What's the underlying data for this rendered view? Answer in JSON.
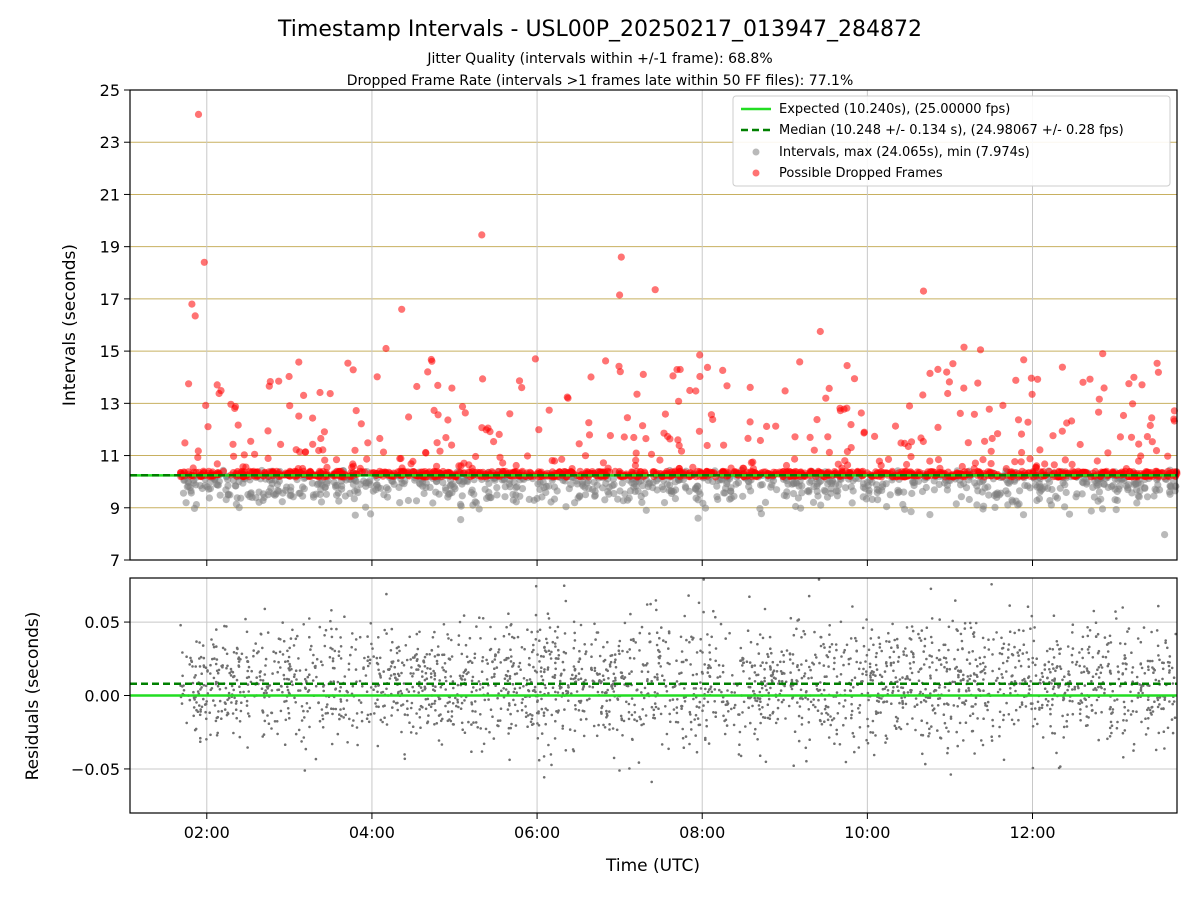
{
  "figure": {
    "title": "Timestamp Intervals - USL00P_20250217_013947_284872",
    "subtitle_1": "Jitter Quality (intervals within +/-1 frame): 68.8%",
    "subtitle_2": "Dropped Frame Rate (intervals >1 frames late within 50 FF files): 77.1%"
  },
  "colors": {
    "expected": "#22dd22",
    "median": "#008000",
    "intervals": "#808080",
    "dropped": "#ff0000",
    "hgrid_top": "#c8b060",
    "grid": "#c8c8c8",
    "residuals": "#707070"
  },
  "chart_data": [
    {
      "type": "scatter",
      "panel": "top",
      "ylabel": "Intervals (seconds)",
      "ylim": [
        7,
        25
      ],
      "xlim_hours": [
        1.07,
        13.75
      ],
      "y_ticks": [
        "7",
        "9",
        "11",
        "13",
        "15",
        "17",
        "19",
        "21",
        "23",
        "25"
      ],
      "grid": "on",
      "legend_position": "top-right",
      "legend": [
        "Expected (10.240s), (25.00000 fps)",
        "Median (10.248 +/- 0.134 s), (24.98067 +/- 0.28 fps)",
        "Intervals, max (24.065s), min (7.974s)",
        "Possible Dropped Frames"
      ],
      "expected_interval": 10.24,
      "median_interval": 10.248,
      "interval_max": 24.065,
      "interval_min": 7.974,
      "time_range_hours": [
        1.67,
        13.75
      ],
      "dropped_highlights": [
        {
          "x": 1.9,
          "y": 24.065
        },
        {
          "x": 1.97,
          "y": 18.4
        },
        {
          "x": 1.82,
          "y": 16.8
        },
        {
          "x": 1.86,
          "y": 16.35
        },
        {
          "x": 5.33,
          "y": 19.45
        },
        {
          "x": 7.02,
          "y": 18.6
        },
        {
          "x": 7.0,
          "y": 17.15
        },
        {
          "x": 7.43,
          "y": 17.35
        },
        {
          "x": 10.68,
          "y": 17.3
        },
        {
          "x": 4.36,
          "y": 16.6
        },
        {
          "x": 9.43,
          "y": 15.75
        },
        {
          "x": 4.17,
          "y": 15.1
        },
        {
          "x": 11.17,
          "y": 15.15
        },
        {
          "x": 11.37,
          "y": 15.05
        },
        {
          "x": 12.85,
          "y": 14.9
        },
        {
          "x": 7.97,
          "y": 14.85
        },
        {
          "x": 5.98,
          "y": 14.7
        },
        {
          "x": 1.78,
          "y": 13.75
        }
      ],
      "interval_highlights": [
        {
          "x": 7.95,
          "y": 8.6
        },
        {
          "x": 13.6,
          "y": 7.974
        },
        {
          "x": 10.53,
          "y": 8.85
        }
      ]
    },
    {
      "type": "scatter",
      "panel": "bottom",
      "xlabel": "Time (UTC)",
      "ylabel": "Residuals (seconds)",
      "ylim": [
        -0.08,
        0.08
      ],
      "y_ticks": [
        "−0.05",
        "0.00",
        "0.05"
      ],
      "y_tick_values": [
        -0.05,
        0.0,
        0.05
      ],
      "x_ticks": [
        "02:00",
        "04:00",
        "06:00",
        "08:00",
        "10:00",
        "12:00"
      ],
      "x_tick_values_hours": [
        2,
        4,
        6,
        8,
        10,
        12
      ],
      "expected_residual": 0.0,
      "median_residual": 0.008,
      "grid": "on"
    }
  ]
}
